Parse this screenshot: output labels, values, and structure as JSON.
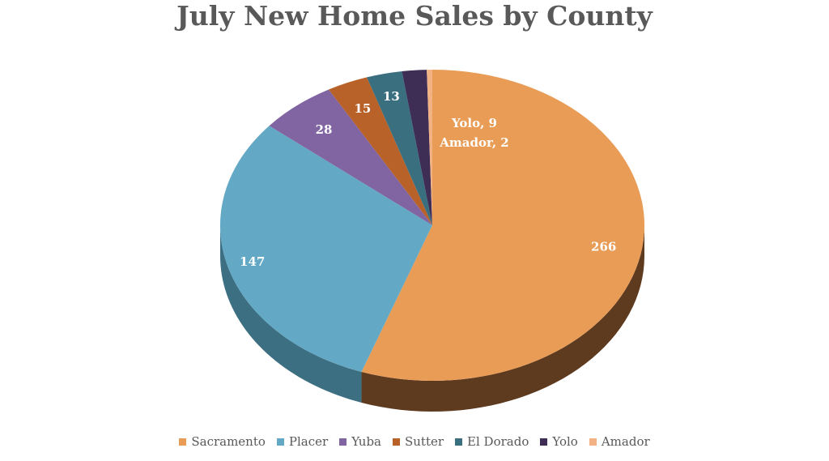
{
  "chart_data": {
    "type": "pie",
    "title": "July New Home Sales by County",
    "categories": [
      "Sacramento",
      "Placer",
      "Yuba",
      "Sutter",
      "El Dorado",
      "Yolo",
      "Amador"
    ],
    "values": [
      266,
      147,
      28,
      15,
      13,
      9,
      2
    ],
    "colors": [
      "#E99C56",
      "#63A9C5",
      "#8165A3",
      "#B8622A",
      "#3A6F80",
      "#3E2E56",
      "#F2B283"
    ],
    "side_colors": [
      "#5E3A1F",
      "#3D6F82",
      "#54406D",
      "#7A3F18",
      "#24495A",
      "#2A1E3A",
      "#A8693F"
    ],
    "data_labels": [
      "266",
      "147",
      "28",
      "15",
      "13",
      "Yolo, 9",
      "Amador, 2"
    ],
    "legend_position": "bottom",
    "style": "3d"
  }
}
